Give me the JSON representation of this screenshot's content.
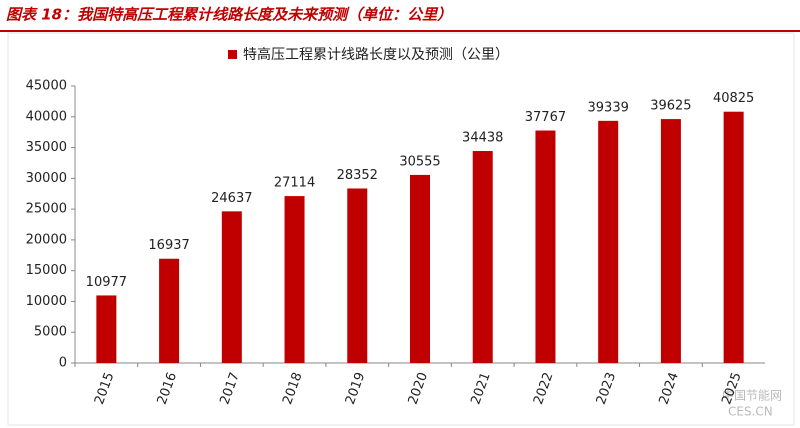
{
  "chart_data": {
    "type": "bar",
    "title": "图表 18：我国特高压工程累计线路长度及未来预测（单位：公里）",
    "categories": [
      "2015",
      "2016",
      "2017",
      "2018",
      "2019",
      "2020",
      "2021",
      "2022",
      "2023",
      "2024",
      "2025"
    ],
    "series": [
      {
        "name": "特高压工程累计线路长度以及预测（公里）",
        "color": "#c00000",
        "values": [
          10977,
          16937,
          24637,
          27114,
          28352,
          30555,
          34438,
          37767,
          39339,
          39625,
          40825
        ]
      }
    ],
    "ylim": [
      0,
      45000
    ],
    "yticks": [
      0,
      5000,
      10000,
      15000,
      20000,
      25000,
      30000,
      35000,
      40000,
      45000
    ],
    "legend": "top",
    "watermark": [
      "中国节能网",
      "CES.CN"
    ]
  }
}
